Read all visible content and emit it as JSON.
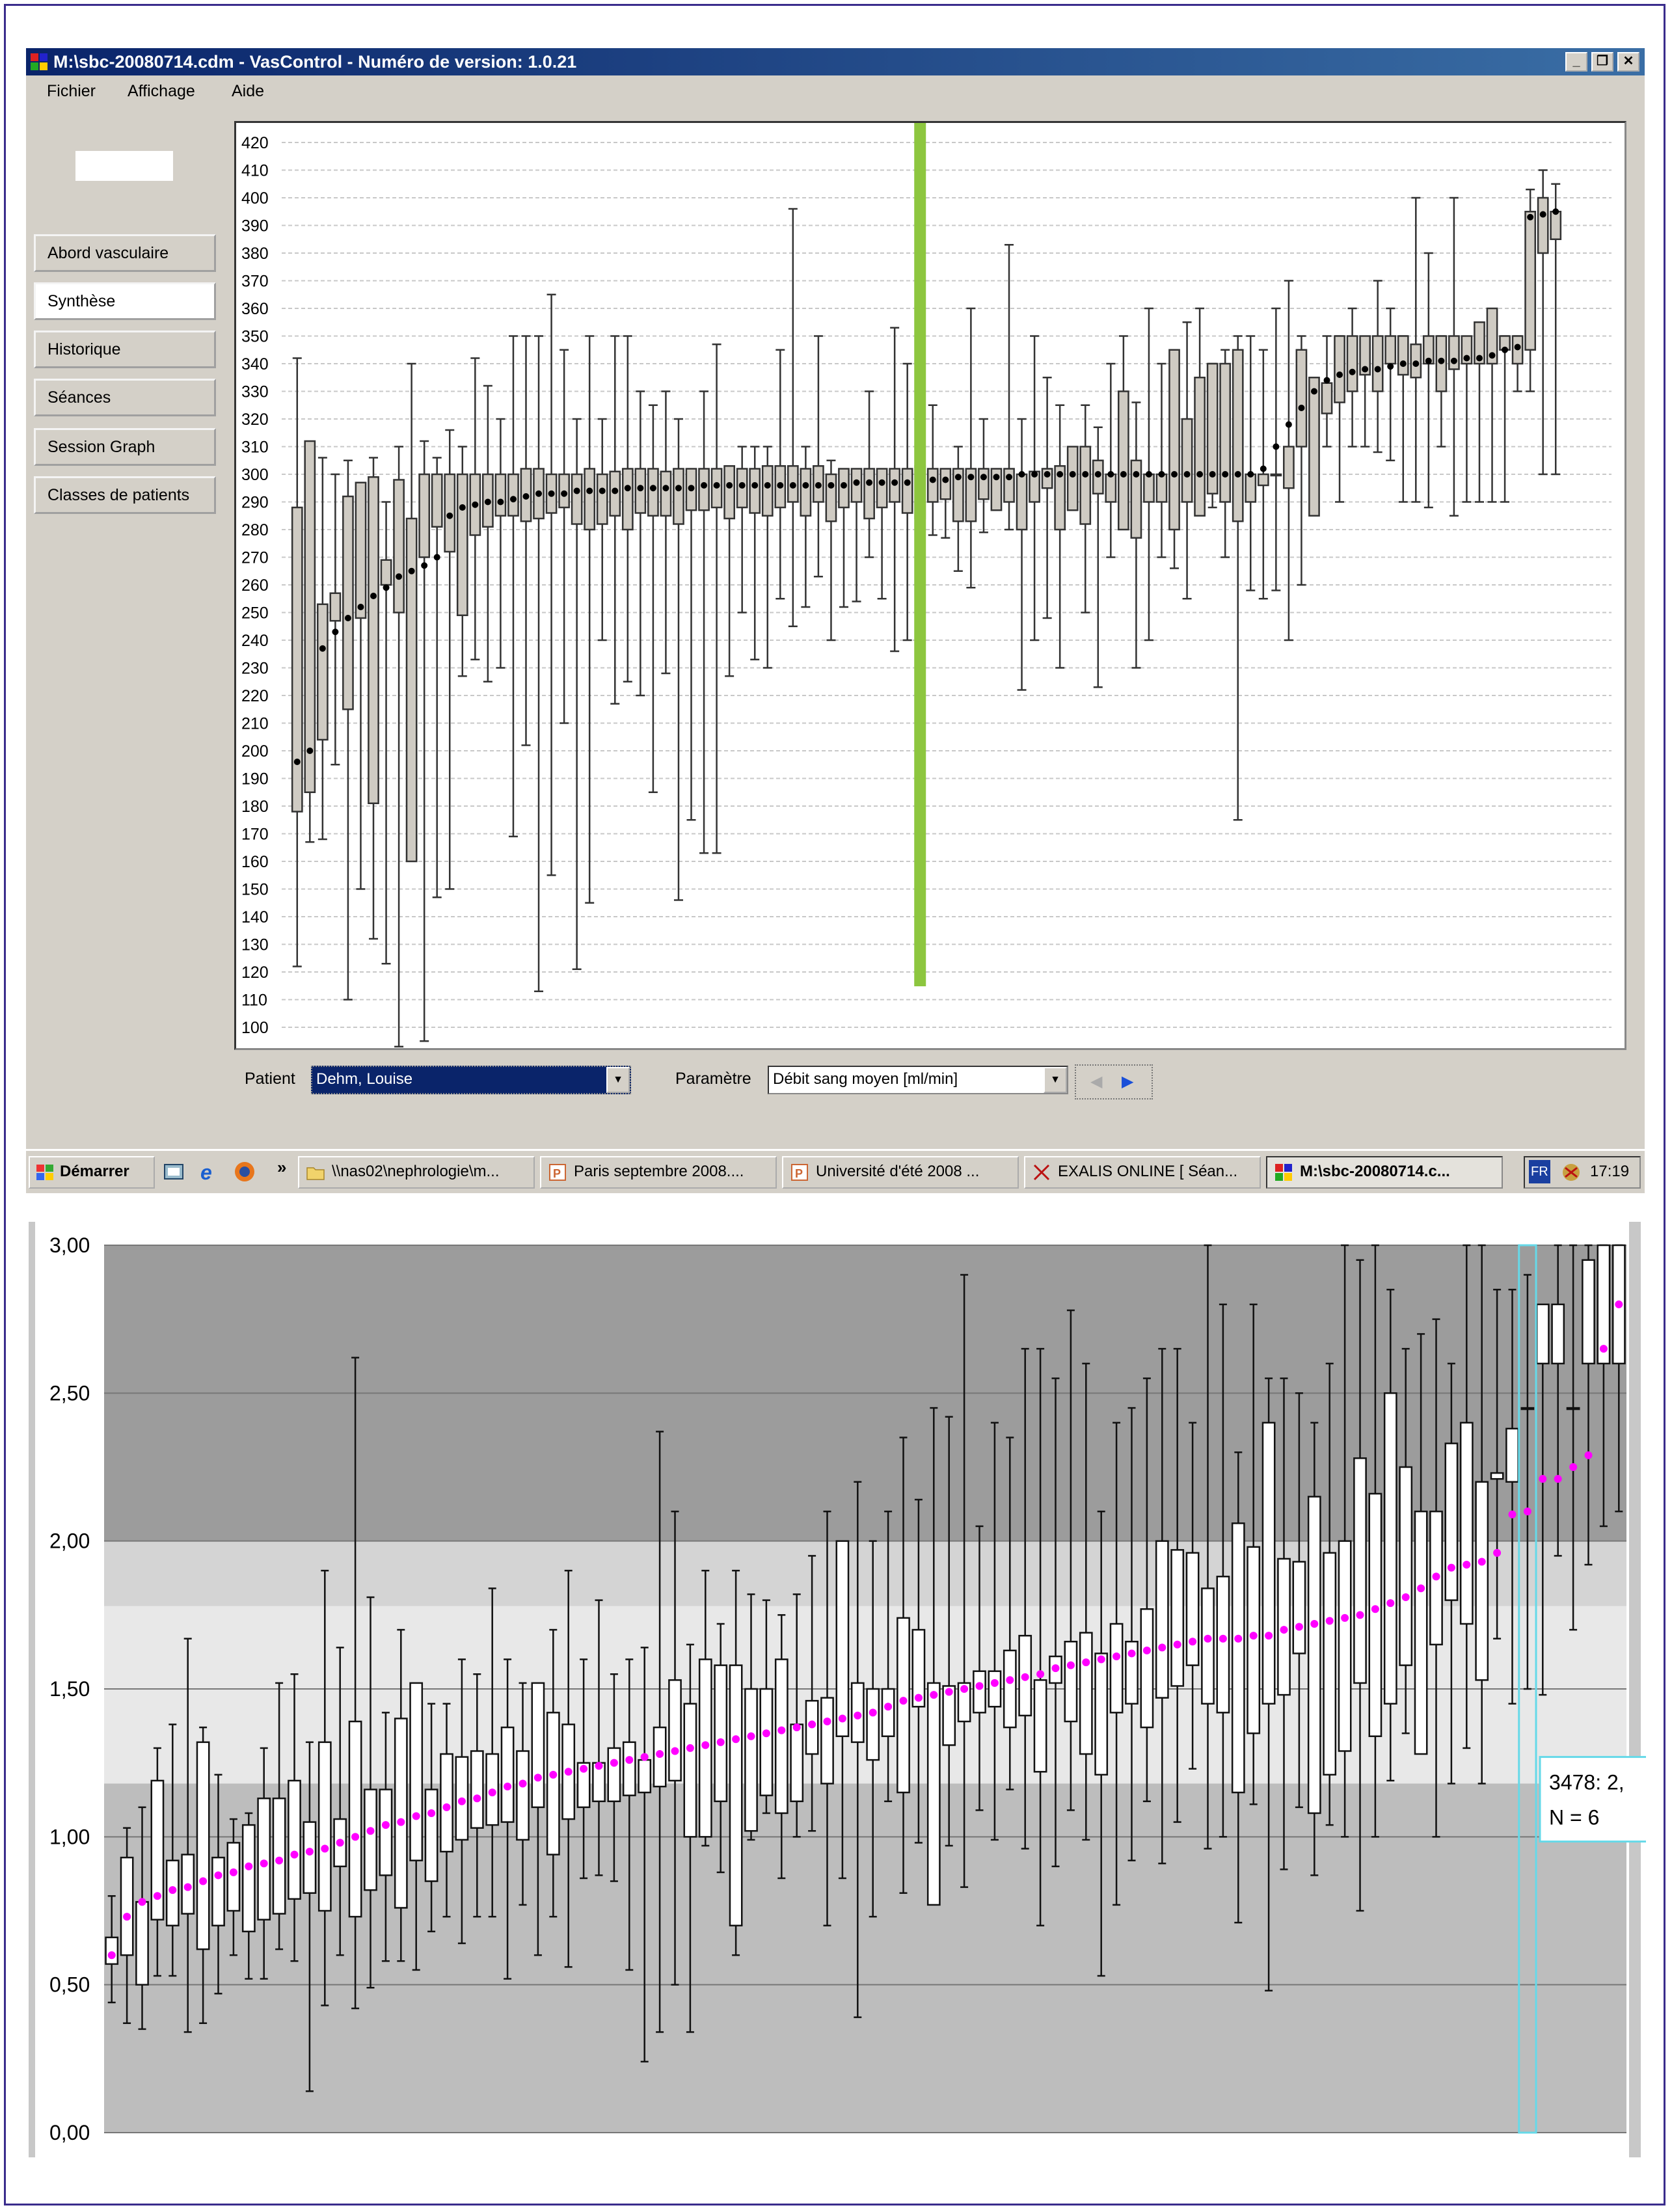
{
  "window": {
    "title": "M:\\sbc-20080714.cdm - VasControl - Numéro de version: 1.0.21"
  },
  "menu": [
    {
      "label": "Fichier"
    },
    {
      "label": "Affichage"
    },
    {
      "label": "Aide"
    }
  ],
  "nav": [
    {
      "label": "Abord vasculaire",
      "active": false
    },
    {
      "label": "Synthèse",
      "active": true
    },
    {
      "label": "Historique",
      "active": false
    },
    {
      "label": "Séances",
      "active": false
    },
    {
      "label": "Session Graph",
      "active": false
    },
    {
      "label": "Classes de patients",
      "active": false
    }
  ],
  "controls": {
    "patient_label": "Patient",
    "patient_value": "Dehm, Louise",
    "param_label": "Paramètre",
    "param_value": "Débit sang moyen [ml/min]"
  },
  "taskbar": {
    "start_label": "Démarrer",
    "quick_more": "»",
    "items": [
      {
        "label": "\\\\nas02\\nephrologie\\m...",
        "icon": "folder-icon",
        "active": false
      },
      {
        "label": "Paris septembre 2008....",
        "icon": "powerpoint-icon",
        "active": false
      },
      {
        "label": "Université d'été 2008 ...",
        "icon": "powerpoint-icon",
        "active": false
      },
      {
        "label": "EXALIS ONLINE [ Séan...",
        "icon": "exalis-icon",
        "active": false
      },
      {
        "label": "M:\\sbc-20080714.c...",
        "icon": "vascontrol-icon",
        "active": true
      }
    ],
    "tray_lang": "FR",
    "clock": "17:19"
  },
  "colors": {
    "highlight_bar": "#8dc63f",
    "mean_dot_top": "#000000",
    "mean_dot_bottom": "#ff00ff",
    "box_top": "#cfcbc3",
    "tooltip_border": "#66d9e8"
  },
  "chart_data": [
    {
      "type": "boxplot",
      "ylim": [
        100,
        420
      ],
      "yticks": [
        100,
        110,
        120,
        130,
        140,
        150,
        160,
        170,
        180,
        190,
        200,
        210,
        220,
        230,
        240,
        250,
        260,
        270,
        280,
        290,
        300,
        310,
        320,
        330,
        340,
        350,
        360,
        370,
        380,
        390,
        400,
        410,
        420
      ],
      "grid": true,
      "n_patients": 100,
      "highlighted_index": 49,
      "means": [
        196,
        200,
        237,
        243,
        248,
        252,
        256,
        259,
        263,
        265,
        267,
        270,
        285,
        288,
        289,
        290,
        290,
        291,
        292,
        293,
        293,
        293,
        294,
        294,
        294,
        294,
        295,
        295,
        295,
        295,
        295,
        295,
        296,
        296,
        296,
        296,
        296,
        296,
        296,
        296,
        296,
        296,
        296,
        296,
        297,
        297,
        297,
        297,
        297,
        297,
        298,
        298,
        299,
        299,
        299,
        299,
        299,
        300,
        300,
        300,
        300,
        300,
        300,
        300,
        300,
        300,
        300,
        300,
        300,
        300,
        300,
        300,
        300,
        300,
        300,
        300,
        302,
        310,
        318,
        324,
        330,
        334,
        336,
        337,
        338,
        338,
        339,
        340,
        340,
        341,
        341,
        341,
        342,
        342,
        343,
        345,
        346,
        393,
        394,
        395
      ],
      "q1": [
        178,
        185,
        204,
        247,
        215,
        248,
        181,
        260,
        250,
        160,
        270,
        281,
        272,
        249,
        278,
        281,
        285,
        285,
        283,
        284,
        286,
        288,
        282,
        280,
        282,
        285,
        280,
        286,
        285,
        285,
        282,
        287,
        287,
        288,
        284,
        288,
        286,
        285,
        288,
        290,
        285,
        290,
        283,
        288,
        290,
        284,
        288,
        290,
        286,
        284,
        290,
        291,
        283,
        283,
        291,
        287,
        290,
        280,
        290,
        295,
        280,
        287,
        282,
        293,
        290,
        280,
        277,
        290,
        290,
        280,
        290,
        285,
        293,
        290,
        283,
        290,
        296,
        300,
        295,
        310,
        285,
        322,
        326,
        330,
        336,
        330,
        340,
        336,
        335,
        340,
        330,
        338,
        340,
        340,
        340,
        345,
        340,
        345,
        380,
        385
      ],
      "q3": [
        288,
        312,
        253,
        257,
        292,
        297,
        299,
        269,
        298,
        284,
        300,
        300,
        300,
        300,
        300,
        300,
        300,
        300,
        302,
        302,
        300,
        300,
        300,
        302,
        300,
        301,
        302,
        302,
        302,
        301,
        302,
        302,
        302,
        302,
        303,
        302,
        302,
        303,
        303,
        303,
        302,
        303,
        300,
        302,
        302,
        302,
        302,
        302,
        302,
        303,
        302,
        302,
        302,
        302,
        302,
        302,
        302,
        300,
        301,
        302,
        303,
        310,
        310,
        305,
        300,
        330,
        305,
        300,
        300,
        345,
        320,
        335,
        340,
        340,
        345,
        300,
        300,
        300,
        310,
        345,
        335,
        333,
        350,
        350,
        350,
        350,
        350,
        350,
        347,
        350,
        350,
        350,
        350,
        355,
        360,
        350,
        350,
        395,
        400,
        395
      ],
      "low": [
        122,
        167,
        168,
        195,
        110,
        150,
        132,
        123,
        93,
        195,
        95,
        147,
        150,
        227,
        233,
        225,
        230,
        169,
        202,
        113,
        155,
        210,
        121,
        145,
        240,
        217,
        225,
        220,
        185,
        228,
        146,
        175,
        163,
        163,
        227,
        250,
        233,
        230,
        255,
        245,
        252,
        263,
        240,
        252,
        254,
        270,
        255,
        236,
        240,
        222,
        278,
        277,
        265,
        259,
        279,
        291,
        280,
        222,
        240,
        248,
        230,
        287,
        250,
        223,
        270,
        286,
        230,
        240,
        270,
        266,
        255,
        291,
        288,
        270,
        175,
        258,
        255,
        258,
        240,
        260,
        300,
        310,
        290,
        310,
        310,
        308,
        305,
        290,
        290,
        288,
        310,
        285,
        290,
        290,
        290,
        290,
        330,
        330,
        300,
        300
      ],
      "high": [
        342,
        310,
        306,
        300,
        305,
        297,
        306,
        290,
        310,
        340,
        312,
        306,
        316,
        310,
        342,
        332,
        320,
        350,
        350,
        350,
        365,
        345,
        320,
        350,
        320,
        350,
        350,
        330,
        325,
        330,
        320,
        300,
        330,
        347,
        300,
        310,
        310,
        310,
        345,
        396,
        310,
        350,
        305,
        300,
        300,
        330,
        300,
        353,
        340,
        400,
        325,
        300,
        310,
        360,
        320,
        300,
        383,
        320,
        350,
        335,
        325,
        300,
        325,
        317,
        340,
        350,
        326,
        360,
        340,
        320,
        355,
        360,
        340,
        345,
        350,
        350,
        345,
        360,
        370,
        350,
        330,
        350,
        350,
        360,
        340,
        370,
        360,
        350,
        400,
        380,
        350,
        400,
        345,
        350,
        350,
        350,
        350,
        403,
        410,
        405
      ]
    },
    {
      "type": "boxplot",
      "ylim": [
        0,
        3
      ],
      "yticks": [
        "0,00",
        "0,50",
        "1,00",
        "1,50",
        "2,00",
        "2,50",
        "3,00"
      ],
      "bands": [
        {
          "from": 0,
          "to": 1.18,
          "color": "#bdbdbd"
        },
        {
          "from": 1.18,
          "to": 1.78,
          "color": "#e8e8e8"
        },
        {
          "from": 1.78,
          "to": 2.0,
          "color": "#d4d4d4"
        },
        {
          "from": 2.0,
          "to": 3.0,
          "color": "#9c9c9c"
        }
      ],
      "n_patients": 100,
      "highlighted_index": 93,
      "tooltip": {
        "line1": "3478: 2,",
        "line2": "N = 6"
      },
      "means": [
        0.6,
        0.73,
        0.78,
        0.8,
        0.82,
        0.83,
        0.85,
        0.87,
        0.88,
        0.9,
        0.91,
        0.92,
        0.94,
        0.95,
        0.96,
        0.98,
        1.0,
        1.02,
        1.04,
        1.05,
        1.07,
        1.08,
        1.1,
        1.12,
        1.13,
        1.15,
        1.17,
        1.18,
        1.2,
        1.21,
        1.22,
        1.23,
        1.24,
        1.25,
        1.26,
        1.27,
        1.28,
        1.29,
        1.3,
        1.31,
        1.32,
        1.33,
        1.34,
        1.35,
        1.36,
        1.37,
        1.38,
        1.39,
        1.4,
        1.41,
        1.42,
        1.44,
        1.46,
        1.47,
        1.48,
        1.49,
        1.5,
        1.51,
        1.52,
        1.53,
        1.54,
        1.55,
        1.57,
        1.58,
        1.59,
        1.6,
        1.61,
        1.62,
        1.63,
        1.64,
        1.65,
        1.66,
        1.67,
        1.67,
        1.67,
        1.68,
        1.68,
        1.7,
        1.71,
        1.72,
        1.73,
        1.74,
        1.75,
        1.77,
        1.79,
        1.81,
        1.84,
        1.88,
        1.91,
        1.92,
        1.93,
        1.96,
        2.09,
        2.1,
        2.21,
        2.21,
        2.25,
        2.29,
        2.65,
        2.8
      ],
      "q1": [
        0.57,
        0.6,
        0.5,
        0.72,
        0.7,
        0.74,
        0.62,
        0.7,
        0.75,
        0.68,
        0.72,
        0.74,
        0.79,
        0.81,
        0.75,
        0.9,
        0.73,
        0.82,
        0.87,
        0.76,
        0.92,
        0.85,
        0.95,
        0.99,
        1.03,
        1.04,
        1.05,
        0.99,
        1.1,
        0.94,
        1.06,
        1.1,
        1.12,
        1.12,
        1.14,
        1.15,
        1.17,
        1.19,
        1.0,
        1.0,
        1.12,
        0.7,
        1.02,
        1.14,
        1.08,
        1.12,
        1.28,
        1.18,
        1.34,
        1.32,
        1.26,
        1.34,
        1.15,
        1.44,
        0.77,
        1.31,
        1.39,
        1.42,
        1.44,
        1.37,
        1.41,
        1.22,
        1.52,
        1.39,
        1.28,
        1.21,
        1.42,
        1.45,
        1.37,
        1.47,
        1.51,
        1.58,
        1.45,
        1.42,
        1.15,
        1.35,
        1.45,
        1.48,
        1.62,
        1.08,
        1.21,
        1.29,
        1.52,
        1.34,
        1.45,
        1.58,
        1.28,
        1.65,
        1.8,
        1.72,
        1.53,
        2.21,
        2.2,
        2.6,
        2.6,
        2.6,
        2.5,
        2.6,
        2.6,
        2.6
      ],
      "q3": [
        0.66,
        0.93,
        0.78,
        1.19,
        0.92,
        0.94,
        1.32,
        0.93,
        0.98,
        1.04,
        1.13,
        1.13,
        1.19,
        1.05,
        1.32,
        1.06,
        1.39,
        1.16,
        1.16,
        1.4,
        1.52,
        1.16,
        1.28,
        1.27,
        1.29,
        1.28,
        1.37,
        1.29,
        1.52,
        1.42,
        1.38,
        1.25,
        1.25,
        1.3,
        1.32,
        1.26,
        1.37,
        1.53,
        1.45,
        1.6,
        1.58,
        1.58,
        1.5,
        1.5,
        1.6,
        1.38,
        1.46,
        1.47,
        2.0,
        1.52,
        1.5,
        1.5,
        1.74,
        1.7,
        1.52,
        1.51,
        1.52,
        1.56,
        1.56,
        1.63,
        1.68,
        1.53,
        1.61,
        1.66,
        1.69,
        1.62,
        1.72,
        1.66,
        1.77,
        2.0,
        1.97,
        1.96,
        1.84,
        1.88,
        2.06,
        1.98,
        2.4,
        1.94,
        1.93,
        2.15,
        1.96,
        2.0,
        2.28,
        2.16,
        2.5,
        2.25,
        2.1,
        2.1,
        2.33,
        2.4,
        2.2,
        2.23,
        2.38,
        2.45,
        2.8,
        2.8,
        2.45,
        2.95,
        3.0,
        3.0
      ],
      "low": [
        0.44,
        0.37,
        0.35,
        0.53,
        0.53,
        0.34,
        0.37,
        0.47,
        0.6,
        0.52,
        0.52,
        0.62,
        0.58,
        0.14,
        0.43,
        0.6,
        0.42,
        0.49,
        0.58,
        0.58,
        0.55,
        0.68,
        0.73,
        0.64,
        0.73,
        0.73,
        0.52,
        0.77,
        0.6,
        0.73,
        0.56,
        0.86,
        0.87,
        0.85,
        0.55,
        0.24,
        0.34,
        0.5,
        0.34,
        0.97,
        0.88,
        0.6,
        0.99,
        1.08,
        0.86,
        1.0,
        1.02,
        0.7,
        0.86,
        0.39,
        0.73,
        1.12,
        0.81,
        0.98,
        1.07,
        0.97,
        0.83,
        1.09,
        0.99,
        1.16,
        0.96,
        0.7,
        0.9,
        1.09,
        0.99,
        0.53,
        0.77,
        0.92,
        1.12,
        0.91,
        1.05,
        1.23,
        0.96,
        1.0,
        0.71,
        1.11,
        0.48,
        0.89,
        1.1,
        0.87,
        1.04,
        1.0,
        0.75,
        1.0,
        1.19,
        1.35,
        1.55,
        1.0,
        1.18,
        1.3,
        1.18,
        1.67,
        1.45,
        1.5,
        1.48,
        1.95,
        1.7,
        1.92,
        2.05,
        2.1
      ],
      "high": [
        0.8,
        1.03,
        1.1,
        1.3,
        1.38,
        1.67,
        1.37,
        1.21,
        1.06,
        1.08,
        1.3,
        1.52,
        1.55,
        1.32,
        1.9,
        1.64,
        2.62,
        1.81,
        1.42,
        1.7,
        1.5,
        1.45,
        1.45,
        1.6,
        1.55,
        1.84,
        1.6,
        1.52,
        1.4,
        1.7,
        1.9,
        1.6,
        1.8,
        1.55,
        1.6,
        1.64,
        2.37,
        2.1,
        1.65,
        1.9,
        1.72,
        1.9,
        1.82,
        1.8,
        1.75,
        1.82,
        1.95,
        2.1,
        1.85,
        2.2,
        2.0,
        2.1,
        2.35,
        2.14,
        2.45,
        2.42,
        2.9,
        2.05,
        2.4,
        2.35,
        2.65,
        2.65,
        2.55,
        2.78,
        2.6,
        2.1,
        2.4,
        2.45,
        2.55,
        2.65,
        2.65,
        2.4,
        3.0,
        2.8,
        2.3,
        2.8,
        2.55,
        2.55,
        2.5,
        2.4,
        2.6,
        3.0,
        2.95,
        3.0,
        2.85,
        2.65,
        2.7,
        2.75,
        2.6,
        3.0,
        3.0,
        2.85,
        2.85,
        2.9,
        2.65,
        3.0,
        3.0,
        3.0,
        3.0,
        3.0
      ]
    }
  ]
}
